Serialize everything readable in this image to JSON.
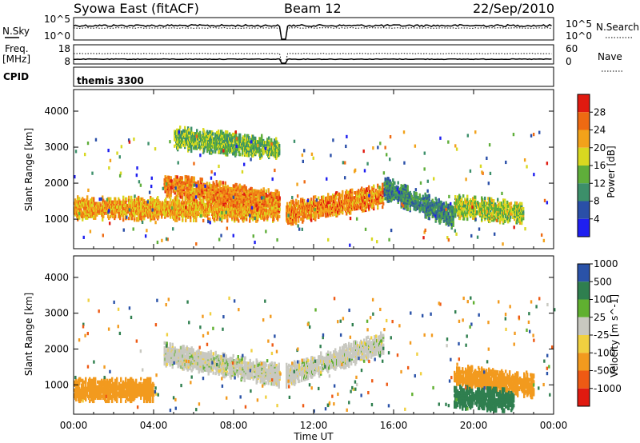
{
  "header": {
    "title": "Syowa East (fitACF)",
    "beam": "Beam 12",
    "date": "22/Sep/2010"
  },
  "summary_panels": {
    "nsky_label": "N.Sky",
    "nsearch_label": "N.Search",
    "sky_ticks": [
      "10^5",
      "10^0"
    ],
    "freq_label": "Freq.",
    "freq_unit": "[MHz]",
    "freq_ticks": [
      "18",
      "8"
    ],
    "nave_label": "Nave",
    "nave_ticks": [
      "60",
      "0"
    ],
    "cpid_label": "CPID",
    "cpid_value": "themis 3300"
  },
  "colors": {
    "power": [
      "#1f1ff0",
      "#2a4fa8",
      "#3c8f6a",
      "#5fae3a",
      "#d8d820",
      "#f2a21a",
      "#ee6a12",
      "#e01a10"
    ],
    "velocity": [
      "#e01a10",
      "#ee5a14",
      "#f29a1e",
      "#f0d040",
      "#c8c8c0",
      "#60b030",
      "#2f7f4f",
      "#2a52a8"
    ]
  },
  "chart_data": [
    {
      "type": "heatmap",
      "name": "power",
      "xlabel": "",
      "ylabel": "Slant Range [km]",
      "colorbar_label": "Power [dB]",
      "colorbar_ticks": [
        "4",
        "8",
        "12",
        "16",
        "20",
        "24",
        "28"
      ],
      "ylim": [
        180,
        4600
      ],
      "y_ticks": [
        "1000",
        "2000",
        "3000",
        "4000"
      ],
      "xlim": [
        0,
        24
      ],
      "data_gap_hours": [
        10.3,
        10.6
      ],
      "features": [
        {
          "t_start": 0.0,
          "t_end": 10.3,
          "range_km_start": 1350,
          "range_km_end": 1300,
          "power_db": 22
        },
        {
          "t_start": 4.5,
          "t_end": 10.3,
          "range_km_start": 2000,
          "range_km_end": 1500,
          "power_db": 24
        },
        {
          "t_start": 5.0,
          "t_end": 10.3,
          "range_km_start": 3300,
          "range_km_end": 3000,
          "power_db": 14
        },
        {
          "t_start": 10.6,
          "t_end": 15.5,
          "range_km_start": 1200,
          "range_km_end": 1700,
          "power_db": 24
        },
        {
          "t_start": 15.5,
          "t_end": 19.0,
          "range_km_start": 1900,
          "range_km_end": 1100,
          "power_db": 10
        },
        {
          "t_start": 19.0,
          "t_end": 22.5,
          "range_km_start": 1400,
          "range_km_end": 1200,
          "power_db": 16
        }
      ]
    },
    {
      "type": "heatmap",
      "name": "velocity",
      "xlabel": "Time UT",
      "ylabel": "Slant Range [km]",
      "colorbar_label": "Velocity [m s^-1]",
      "colorbar_ticks": [
        "-1000",
        "-500",
        "-100",
        "-25",
        "25",
        "100",
        "500",
        "1000"
      ],
      "ylim": [
        180,
        4600
      ],
      "y_ticks": [
        "1000",
        "2000",
        "3000",
        "4000"
      ],
      "xlim": [
        0,
        24
      ],
      "x_ticks": [
        "00:00",
        "04:00",
        "08:00",
        "12:00",
        "16:00",
        "20:00",
        "00:00"
      ],
      "data_gap_hours": [
        10.3,
        10.6
      ],
      "features": [
        {
          "t_start": 4.5,
          "t_end": 10.3,
          "range_km_start": 1900,
          "range_km_end": 1300,
          "velocity": 0
        },
        {
          "t_start": 10.6,
          "t_end": 15.5,
          "range_km_start": 1300,
          "range_km_end": 2200,
          "velocity": 0
        },
        {
          "t_start": 0.0,
          "t_end": 4.0,
          "range_km_start": 900,
          "range_km_end": 900,
          "velocity": -300
        },
        {
          "t_start": 19.0,
          "t_end": 23.0,
          "range_km_start": 1300,
          "range_km_end": 1000,
          "velocity": -200
        },
        {
          "t_start": 19.0,
          "t_end": 22.0,
          "range_km_start": 700,
          "range_km_end": 600,
          "velocity": 400
        }
      ]
    }
  ]
}
